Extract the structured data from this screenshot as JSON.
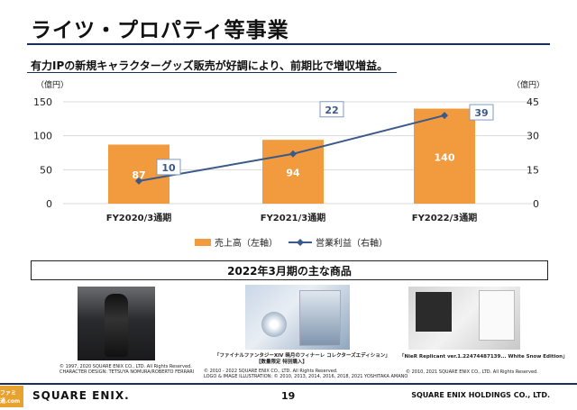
{
  "header": {
    "title": "ライツ・プロパティ等事業",
    "subtitle": "有力IPの新規キャラクターグッズ販売が好調により、前期比で増収増益。"
  },
  "chart_data": {
    "type": "bar+line",
    "categories": [
      "FY2020/3通期",
      "FY2021/3通期",
      "FY2022/3通期"
    ],
    "series": [
      {
        "name": "売上高（左軸）",
        "type": "bar",
        "axis": "left",
        "values": [
          87,
          94,
          140
        ],
        "color": "#f19a3e"
      },
      {
        "name": "営業利益（右軸）",
        "type": "line",
        "axis": "right",
        "values": [
          10,
          22,
          39
        ],
        "color": "#3b5a8a"
      }
    ],
    "y_left": {
      "unit": "（億円）",
      "ticks": [
        "0",
        "50",
        "100",
        "150"
      ],
      "min": 0,
      "max": 150
    },
    "y_right": {
      "unit": "（億円）",
      "ticks": [
        "0",
        "15",
        "30",
        "45"
      ],
      "min": 0,
      "max": 45
    },
    "grid": true,
    "legend": "bottom"
  },
  "products": {
    "heading": "2022年3月期の主な商品",
    "items": [
      {
        "caption": [
          "© 1997, 2020 SQUARE ENIX CO., LTD. All Rights Reserved.",
          "CHARACTER DESIGN: TETSUYA NOMURA/ROBERTO FERRARI"
        ]
      },
      {
        "title": [
          "「ファイナルファンタジーXIV 暁月のフィナーレ コレクターズエディション」",
          "【数量限定 特別購入】"
        ],
        "caption": [
          "© 2010 - 2022 SQUARE ENIX CO., LTD. All Rights Reserved.",
          "LOGO & IMAGE ILLUSTRATION: © 2010, 2013, 2014, 2016, 2018, 2021 YOSHITAKA AMANO"
        ]
      },
      {
        "title": [
          "「NieR Replicant ver.1.22474487139... White Snow Edition」"
        ],
        "caption": [
          "© 2010, 2021 SQUARE ENIX CO., LTD. All Rights Reserved."
        ]
      }
    ]
  },
  "footer": {
    "logo": "SQUARE ENIX.",
    "page": "19",
    "company": "SQUARE ENIX HOLDINGS CO., LTD.",
    "watermark": "ファミ通.com"
  }
}
